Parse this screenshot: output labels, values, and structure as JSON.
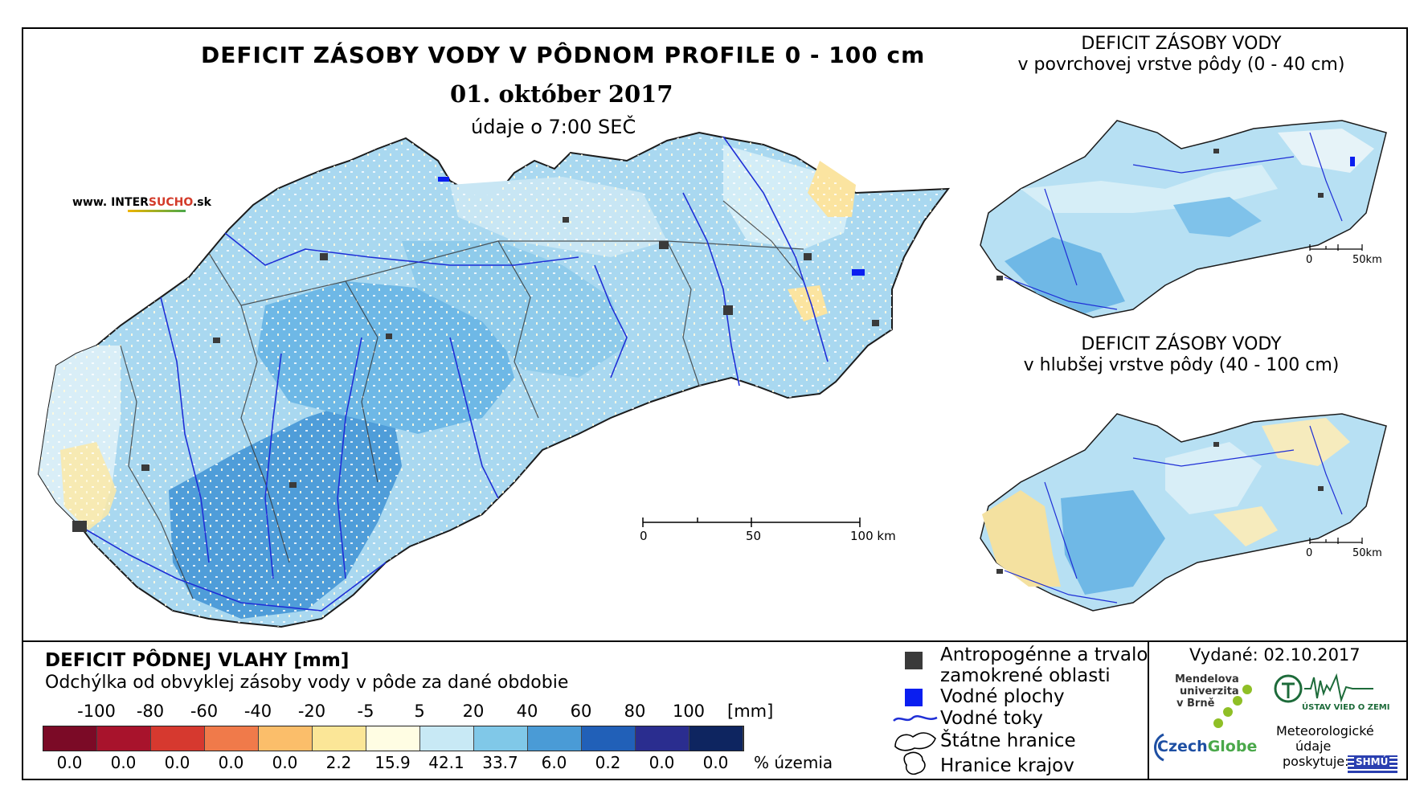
{
  "header": {
    "title": "DEFICIT ZÁSOBY VODY V PÔDNOM PROFILE 0 - 100 cm",
    "date": "01. október 2017",
    "data_time": "údaje o 7:00 SEČ",
    "brand_prefix": "www. INTER",
    "brand_accent": "SUCHO",
    "brand_suffix": ".sk"
  },
  "main_map": {
    "scale_labels": [
      "0",
      "50",
      "100 km"
    ]
  },
  "inset_top": {
    "title_line1": "DEFICIT ZÁSOBY VODY",
    "title_line2": "v povrchovej vrstve pôdy (0 - 40 cm)",
    "scale_labels": [
      "0",
      "50km"
    ]
  },
  "inset_bottom": {
    "title_line1": "DEFICIT ZÁSOBY VODY",
    "title_line2": "v hlubšej vrstve pôdy (40 - 100 cm)",
    "scale_labels": [
      "0",
      "50km"
    ]
  },
  "legend": {
    "title": "DEFICIT PÔDNEJ VLAHY [mm]",
    "subtitle": "Odchýlka od obvyklej zásoby vody v pôde za dané obdobie",
    "ticks": [
      "-100",
      "-80",
      "-60",
      "-40",
      "-20",
      "-5",
      "5",
      "20",
      "40",
      "60",
      "80",
      "100"
    ],
    "unit": "[mm]",
    "colors": [
      "#7b0a26",
      "#a8132c",
      "#d6392f",
      "#f07a4a",
      "#fbbe6a",
      "#fbe697",
      "#fffde3",
      "#c8e9f5",
      "#80c8e8",
      "#4a9bd6",
      "#2160b8",
      "#2a2d8f",
      "#0e2560"
    ],
    "percentages": [
      "0.0",
      "0.0",
      "0.0",
      "0.0",
      "0.0",
      "2.2",
      "15.9",
      "42.1",
      "33.7",
      "6.0",
      "0.2",
      "0.0",
      "0.0"
    ],
    "pct_unit": "% územia"
  },
  "map_key": {
    "anthropogenic_line1": "Antropogénne a trvalo",
    "anthropogenic_line2": "zamokrené oblasti",
    "water_areas": "Vodné plochy",
    "streams": "Vodné toky",
    "state_border": "Štátne hranice",
    "region_border": "Hranice krajov",
    "colors": {
      "anthropogenic": "#3a3a3a",
      "water": "#0a1ef0",
      "streams": "#1f2fd6"
    }
  },
  "credits": {
    "issued": "Vydané: 02.10.2017",
    "mendel_line1": "Mendelova",
    "mendel_line2": "univerzita",
    "mendel_line3": "v Brně",
    "czechglobe_a": "Czech",
    "czechglobe_b": "Globe",
    "ustav": "ÚSTAV VIED O ZEMI",
    "meteo_line1": "Meteorologické",
    "meteo_line2": "údaje",
    "meteo_line3": "poskytuje:",
    "shmu": "SHMÚ"
  }
}
